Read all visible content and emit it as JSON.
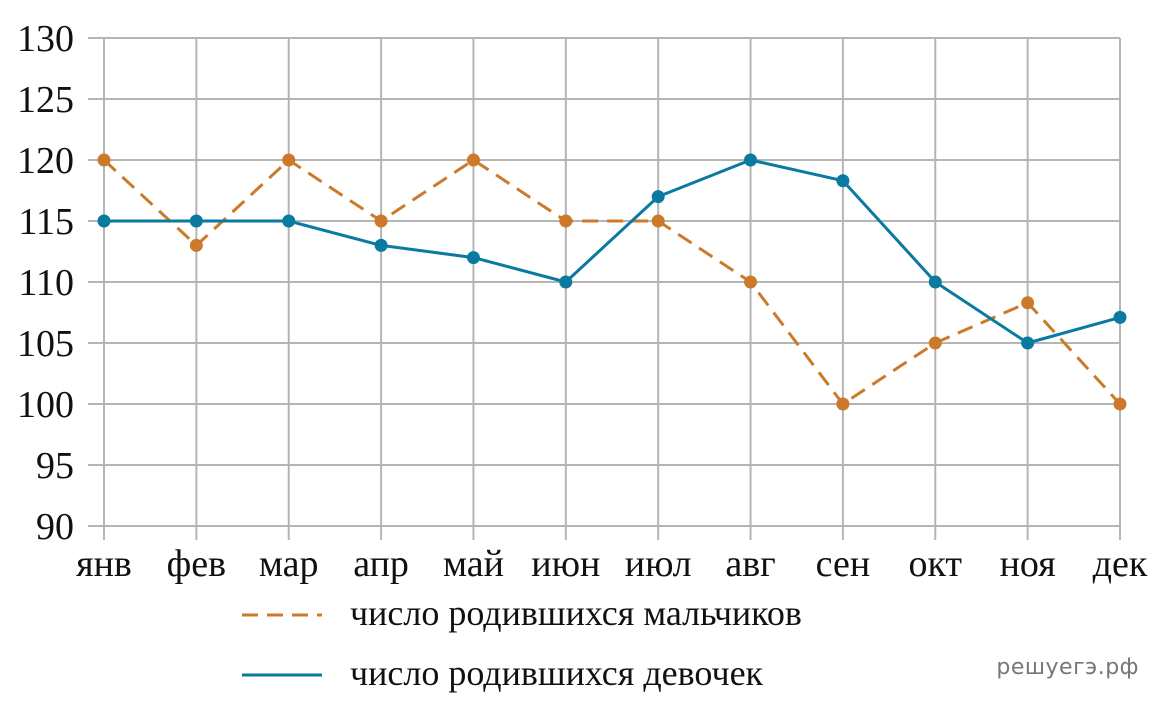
{
  "chart_data": {
    "type": "line",
    "categories": [
      "янв",
      "фев",
      "мар",
      "апр",
      "май",
      "июн",
      "июл",
      "авг",
      "сен",
      "окт",
      "ноя",
      "дек"
    ],
    "ylim": [
      90,
      130
    ],
    "yticks": [
      90,
      95,
      100,
      105,
      110,
      115,
      120,
      125,
      130
    ],
    "grid": true,
    "legend_position": "bottom",
    "series": [
      {
        "name": "число родившихся мальчиков",
        "style": "dashed",
        "color": "#cc7a2a",
        "values": [
          120,
          113,
          120,
          115,
          120,
          115,
          115,
          110,
          100,
          105,
          108.3,
          100
        ]
      },
      {
        "name": "число родившихся девочек",
        "style": "solid",
        "color": "#0a7aa0",
        "values": [
          115,
          115,
          115,
          113,
          112,
          110,
          117,
          120,
          118.3,
          110,
          105,
          107.1
        ]
      }
    ]
  },
  "watermark": "решуегэ.рф"
}
